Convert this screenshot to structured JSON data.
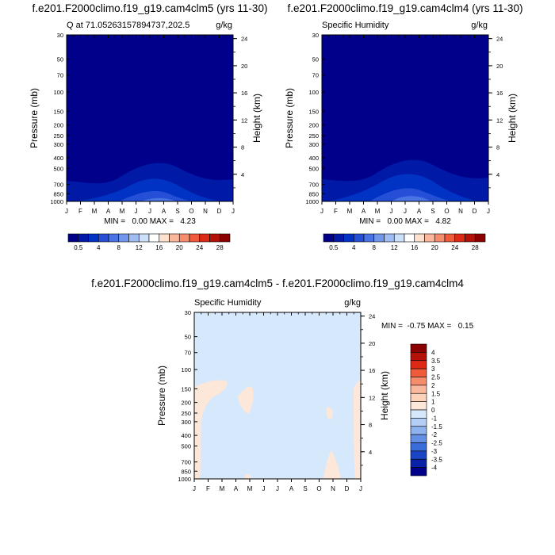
{
  "months": [
    "J",
    "F",
    "M",
    "A",
    "M",
    "J",
    "J",
    "A",
    "S",
    "O",
    "N",
    "D",
    "J"
  ],
  "chart_data": [
    {
      "type": "heatmap",
      "title": "f.e201.F2000climo.f19_g19.cam4clm5 (yrs 11-30)",
      "left_label": "Q at 71.05263157894737,202.5",
      "right_label": "g/kg",
      "ylabel": "Pressure (mb)",
      "y2label": "Height (km)",
      "stats": "MIN =   0.00 MAX =   4.23",
      "pressure_ticks": [
        "30",
        "50",
        "70",
        "100",
        "150",
        "200",
        "250",
        "300",
        "400",
        "500",
        "700",
        "850",
        "1000"
      ],
      "height_ticks": [
        "24",
        "20",
        "16",
        "12",
        "8",
        "4"
      ],
      "colorbar_labels": [
        "0.5",
        "4",
        "8",
        "12",
        "16",
        "20",
        "24",
        "28"
      ],
      "colorbar_colors": [
        "#00008b",
        "#0019a6",
        "#0033c4",
        "#254fd6",
        "#4a73e3",
        "#7097ec",
        "#a0bdf3",
        "#cde0fa",
        "#ffffff",
        "#fde0cd",
        "#f9b79b",
        "#f58c6c",
        "#ee5a3a",
        "#dc2a15",
        "#b41108",
        "#8b0000"
      ],
      "contour_levels_kgkg_max": 4.23
    },
    {
      "type": "heatmap",
      "title": "f.e201.F2000climo.f19_g19.cam4clm4 (yrs 11-30)",
      "left_label": "Specific Humidity",
      "right_label": "g/kg",
      "ylabel": "Pressure (mb)",
      "y2label": "Height (km)",
      "stats": "MIN =   0.00 MAX =   4.82",
      "pressure_ticks": [
        "30",
        "50",
        "70",
        "100",
        "150",
        "200",
        "250",
        "300",
        "400",
        "500",
        "700",
        "850",
        "1000"
      ],
      "height_ticks": [
        "24",
        "20",
        "16",
        "12",
        "8",
        "4"
      ],
      "colorbar_labels": [
        "0.5",
        "4",
        "8",
        "12",
        "16",
        "20",
        "24",
        "28"
      ],
      "colorbar_colors": [
        "#00008b",
        "#0019a6",
        "#0033c4",
        "#254fd6",
        "#4a73e3",
        "#7097ec",
        "#a0bdf3",
        "#cde0fa",
        "#ffffff",
        "#fde0cd",
        "#f9b79b",
        "#f58c6c",
        "#ee5a3a",
        "#dc2a15",
        "#b41108",
        "#8b0000"
      ]
    },
    {
      "type": "heatmap",
      "title": "f.e201.F2000climo.f19_g19.cam4clm5 - f.e201.F2000climo.f19_g19.cam4clm4",
      "left_label": "Specific Humidity",
      "right_label": "g/kg",
      "ylabel": "Pressure (mb)",
      "y2label": "Height (km)",
      "stats": "MIN =  -0.75 MAX =   0.15",
      "pressure_ticks": [
        "30",
        "50",
        "70",
        "100",
        "150",
        "200",
        "250",
        "300",
        "400",
        "500",
        "700",
        "850",
        "1000"
      ],
      "height_ticks": [
        "24",
        "20",
        "16",
        "12",
        "8",
        "4"
      ],
      "colorbar_labels": [
        "4",
        "3.5",
        "3",
        "2.5",
        "2",
        "1.5",
        "1",
        "0",
        "-1",
        "-1.5",
        "-2",
        "-2.5",
        "-3",
        "-3.5",
        "-4"
      ],
      "colorbar_colors": [
        "#8b0000",
        "#b41108",
        "#dc2a15",
        "#ee5a3a",
        "#f58c6c",
        "#f9b79b",
        "#fcd2bb",
        "#fde7d9",
        "#d6e8fb",
        "#b4cff5",
        "#8eb2ee",
        "#6390e5",
        "#3a6cda",
        "#1a45c4",
        "#0a22a6",
        "#00008b"
      ]
    }
  ]
}
